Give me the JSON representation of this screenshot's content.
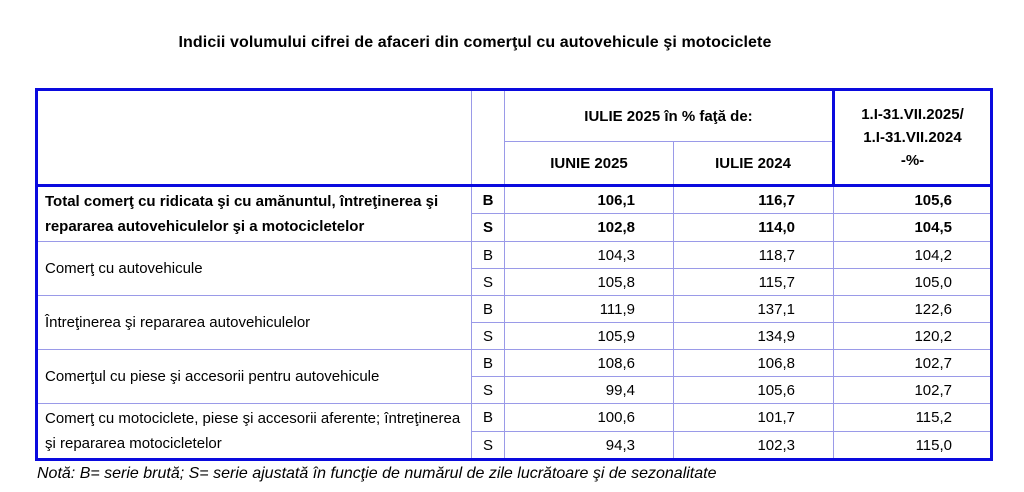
{
  "title": "Indicii volumului cifrei de afaceri din comerţul cu autovehicule şi motociclete",
  "table": {
    "header": {
      "spanner": "IULIE 2025 în % faţă de:",
      "col_iunie": "IUNIE 2025",
      "col_iulie": "IULIE 2024",
      "period_line1": "1.I-31.VII.2025/",
      "period_line2": "1.I-31.VII.2024",
      "period_line3": "-%-"
    },
    "groups": [
      {
        "label": "Total comerţ cu ridicata şi cu amănuntul, întreţinerea şi repararea autovehiculelor şi a motocicletelor",
        "bold": true,
        "series": [
          {
            "code": "B",
            "values": [
              "106,1",
              "116,7",
              "105,6"
            ]
          },
          {
            "code": "S",
            "values": [
              "102,8",
              "114,0",
              "104,5"
            ]
          }
        ]
      },
      {
        "label": "Comerţ cu autovehicule",
        "bold": false,
        "series": [
          {
            "code": "B",
            "values": [
              "104,3",
              "118,7",
              "104,2"
            ]
          },
          {
            "code": "S",
            "values": [
              "105,8",
              "115,7",
              "105,0"
            ]
          }
        ]
      },
      {
        "label": "Întreţinerea şi repararea autovehiculelor",
        "bold": false,
        "series": [
          {
            "code": "B",
            "values": [
              "111,9",
              "137,1",
              "122,6"
            ]
          },
          {
            "code": "S",
            "values": [
              "105,9",
              "134,9",
              "120,2"
            ]
          }
        ]
      },
      {
        "label": "Comerţul cu piese şi accesorii pentru autovehicule",
        "bold": false,
        "series": [
          {
            "code": "B",
            "values": [
              "108,6",
              "106,8",
              "102,7"
            ]
          },
          {
            "code": "S",
            "values": [
              "99,4",
              "105,6",
              "102,7"
            ]
          }
        ]
      },
      {
        "label": "Comerţ cu motociclete, piese şi accesorii aferente; întreţinerea şi repararea motocicletelor",
        "bold": false,
        "series": [
          {
            "code": "B",
            "values": [
              "100,6",
              "101,7",
              "115,2"
            ]
          },
          {
            "code": "S",
            "values": [
              "94,3",
              "102,3",
              "115,0"
            ]
          }
        ]
      }
    ]
  },
  "note": "Notă: B= serie brută; S= serie ajustată în funcţie de numărul de zile lucrătoare şi de sezonalitate",
  "colors": {
    "border_strong": "#0a0ade",
    "border_light": "#9a9ae8",
    "text": "#000000",
    "background": "#ffffff"
  }
}
